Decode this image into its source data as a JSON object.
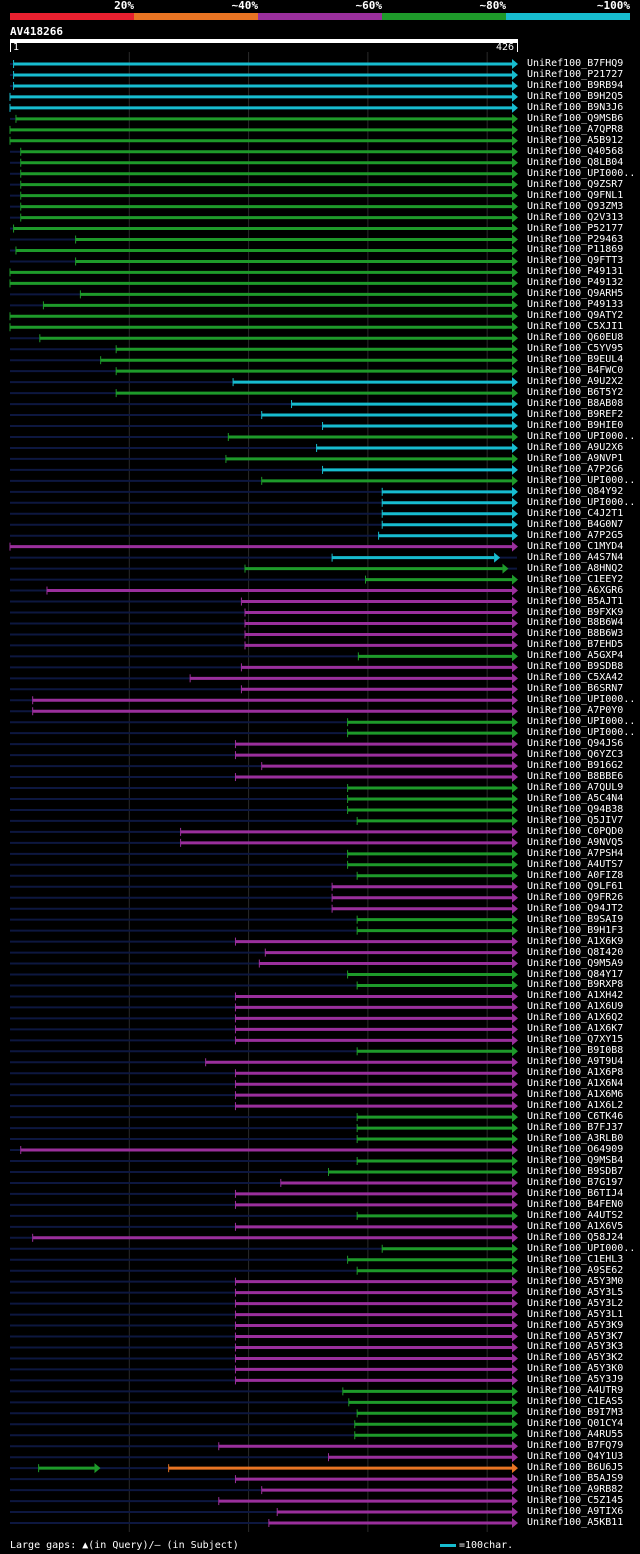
{
  "query": {
    "id": "AV418266",
    "length": 426,
    "start_label": "1",
    "end_label": "426"
  },
  "legend": [
    {
      "label": "20%",
      "color": "#e8202f"
    },
    {
      "label": "~40%",
      "color": "#e87423"
    },
    {
      "label": "~60%",
      "color": "#9a2f9c"
    },
    {
      "label": "~80%",
      "color": "#1e9a2a"
    },
    {
      "label": "~100%",
      "color": "#17bccf"
    }
  ],
  "colors": {
    "teal": "#17bccf",
    "green": "#1e9a2a",
    "purple": "#9a2f9c",
    "orange": "#e87423",
    "red": "#e8202f",
    "track": "#0d1740"
  },
  "footer": {
    "gaps_text": "Large gaps: ▲(in Query)/— (in Subject)",
    "scale_text": "=100char."
  },
  "chart_data": {
    "type": "alignment-overview",
    "x_units": "query residue",
    "xlim": [
      1,
      426
    ],
    "hits": [
      {
        "id": "UniRef100_B7FHQ9",
        "color": "teal",
        "start": 4,
        "end": 426
      },
      {
        "id": "UniRef100_P21727",
        "color": "teal",
        "start": 4,
        "end": 426
      },
      {
        "id": "UniRef100_B9RB94",
        "color": "teal",
        "start": 4,
        "end": 426
      },
      {
        "id": "UniRef100_B9H2Q5",
        "color": "teal",
        "start": 1,
        "end": 426
      },
      {
        "id": "UniRef100_B9N3J6",
        "color": "teal",
        "start": 1,
        "end": 426
      },
      {
        "id": "UniRef100_Q9MSB6",
        "color": "green",
        "start": 6,
        "end": 426
      },
      {
        "id": "UniRef100_A7QPR8",
        "color": "green",
        "start": 1,
        "end": 426
      },
      {
        "id": "UniRef100_A5B912",
        "color": "green",
        "start": 1,
        "end": 426
      },
      {
        "id": "UniRef100_Q40568",
        "color": "green",
        "start": 10,
        "end": 426
      },
      {
        "id": "UniRef100_Q8LB04",
        "color": "green",
        "start": 10,
        "end": 426
      },
      {
        "id": "UniRef100_UPI000..",
        "color": "green",
        "start": 10,
        "end": 426
      },
      {
        "id": "UniRef100_Q9ZSR7",
        "color": "green",
        "start": 10,
        "end": 426
      },
      {
        "id": "UniRef100_Q9FNL1",
        "color": "green",
        "start": 10,
        "end": 426
      },
      {
        "id": "UniRef100_Q93ZM3",
        "color": "green",
        "start": 10,
        "end": 426
      },
      {
        "id": "UniRef100_Q2V313",
        "color": "green",
        "start": 10,
        "end": 426
      },
      {
        "id": "UniRef100_P52177",
        "color": "green",
        "start": 4,
        "end": 426
      },
      {
        "id": "UniRef100_P29463",
        "color": "green",
        "start": 56,
        "end": 426
      },
      {
        "id": "UniRef100_P11869",
        "color": "green",
        "start": 6,
        "end": 426
      },
      {
        "id": "UniRef100_Q9FTT3",
        "color": "green",
        "start": 56,
        "end": 426
      },
      {
        "id": "UniRef100_P49131",
        "color": "green",
        "start": 1,
        "end": 426
      },
      {
        "id": "UniRef100_P49132",
        "color": "green",
        "start": 1,
        "end": 426
      },
      {
        "id": "UniRef100_Q9ARH5",
        "color": "green",
        "start": 60,
        "end": 426
      },
      {
        "id": "UniRef100_P49133",
        "color": "green",
        "start": 29,
        "end": 426
      },
      {
        "id": "UniRef100_Q9ATY2",
        "color": "green",
        "start": 1,
        "end": 426
      },
      {
        "id": "UniRef100_C5XJI1",
        "color": "green",
        "start": 1,
        "end": 426
      },
      {
        "id": "UniRef100_Q60EU8",
        "color": "green",
        "start": 26,
        "end": 426
      },
      {
        "id": "UniRef100_C5YV95",
        "color": "green",
        "start": 90,
        "end": 426
      },
      {
        "id": "UniRef100_B9EUL4",
        "color": "green",
        "start": 77,
        "end": 426
      },
      {
        "id": "UniRef100_B4FWC0",
        "color": "green",
        "start": 90,
        "end": 426
      },
      {
        "id": "UniRef100_A9U2X2",
        "color": "teal",
        "start": 188,
        "end": 426
      },
      {
        "id": "UniRef100_B6T5Y2",
        "color": "green",
        "start": 90,
        "end": 426
      },
      {
        "id": "UniRef100_B8AB08",
        "color": "teal",
        "start": 237,
        "end": 426
      },
      {
        "id": "UniRef100_B9REF2",
        "color": "teal",
        "start": 212,
        "end": 426
      },
      {
        "id": "UniRef100_B9HIE0",
        "color": "teal",
        "start": 263,
        "end": 426
      },
      {
        "id": "UniRef100_UPI000..",
        "color": "green",
        "start": 184,
        "end": 426
      },
      {
        "id": "UniRef100_A9U2X6",
        "color": "teal",
        "start": 258,
        "end": 426
      },
      {
        "id": "UniRef100_A9NVP1",
        "color": "green",
        "start": 182,
        "end": 426
      },
      {
        "id": "UniRef100_A7P2G6",
        "color": "teal",
        "start": 263,
        "end": 426
      },
      {
        "id": "UniRef100_UPI000..",
        "color": "green",
        "start": 212,
        "end": 426
      },
      {
        "id": "UniRef100_Q84Y92",
        "color": "teal",
        "start": 313,
        "end": 426
      },
      {
        "id": "UniRef100_UPI000..",
        "color": "teal",
        "start": 313,
        "end": 426
      },
      {
        "id": "UniRef100_C4J2T1",
        "color": "teal",
        "start": 313,
        "end": 426
      },
      {
        "id": "UniRef100_B4G0N7",
        "color": "teal",
        "start": 313,
        "end": 426
      },
      {
        "id": "UniRef100_A7P2G5",
        "color": "teal",
        "start": 310,
        "end": 426
      },
      {
        "id": "UniRef100_C1MYD4",
        "color": "purple",
        "start": 1,
        "end": 426
      },
      {
        "id": "UniRef100_A4S7N4",
        "color": "teal",
        "start": 271,
        "end": 411
      },
      {
        "id": "UniRef100_A8HNQ2",
        "color": "green",
        "start": 198,
        "end": 418
      },
      {
        "id": "UniRef100_C1EEY2",
        "color": "green",
        "start": 299,
        "end": 426
      },
      {
        "id": "UniRef100_A6XGR6",
        "color": "purple",
        "start": 32,
        "end": 426
      },
      {
        "id": "UniRef100_B5AJT1",
        "color": "purple",
        "start": 195,
        "end": 426
      },
      {
        "id": "UniRef100_B9FXK9",
        "color": "purple",
        "start": 198,
        "end": 426
      },
      {
        "id": "UniRef100_B8B6W4",
        "color": "purple",
        "start": 198,
        "end": 426
      },
      {
        "id": "UniRef100_B8B6W3",
        "color": "purple",
        "start": 198,
        "end": 426
      },
      {
        "id": "UniRef100_B7EHD5",
        "color": "purple",
        "start": 198,
        "end": 426
      },
      {
        "id": "UniRef100_A5GXP4",
        "color": "green",
        "start": 293,
        "end": 426
      },
      {
        "id": "UniRef100_B9SDB8",
        "color": "purple",
        "start": 195,
        "end": 426
      },
      {
        "id": "UniRef100_C5XA42",
        "color": "purple",
        "start": 152,
        "end": 426
      },
      {
        "id": "UniRef100_B6SRN7",
        "color": "purple",
        "start": 195,
        "end": 426
      },
      {
        "id": "UniRef100_UPI000..",
        "color": "purple",
        "start": 20,
        "end": 426
      },
      {
        "id": "UniRef100_A7P0Y0",
        "color": "purple",
        "start": 20,
        "end": 426
      },
      {
        "id": "UniRef100_UPI000..",
        "color": "green",
        "start": 284,
        "end": 426
      },
      {
        "id": "UniRef100_UPI000..",
        "color": "green",
        "start": 284,
        "end": 426
      },
      {
        "id": "UniRef100_Q94JS6",
        "color": "purple",
        "start": 190,
        "end": 426
      },
      {
        "id": "UniRef100_Q6YZC3",
        "color": "purple",
        "start": 190,
        "end": 426
      },
      {
        "id": "UniRef100_B916G2",
        "color": "purple",
        "start": 212,
        "end": 426
      },
      {
        "id": "UniRef100_B8BBE6",
        "color": "purple",
        "start": 190,
        "end": 426
      },
      {
        "id": "UniRef100_A7QUL9",
        "color": "green",
        "start": 284,
        "end": 426
      },
      {
        "id": "UniRef100_A5C4N4",
        "color": "green",
        "start": 284,
        "end": 426
      },
      {
        "id": "UniRef100_Q94B38",
        "color": "green",
        "start": 284,
        "end": 426
      },
      {
        "id": "UniRef100_Q5JIV7",
        "color": "green",
        "start": 292,
        "end": 426
      },
      {
        "id": "UniRef100_C0PQD0",
        "color": "purple",
        "start": 144,
        "end": 426
      },
      {
        "id": "UniRef100_A9NVQ5",
        "color": "purple",
        "start": 144,
        "end": 426
      },
      {
        "id": "UniRef100_A7PSH4",
        "color": "green",
        "start": 284,
        "end": 426
      },
      {
        "id": "UniRef100_A4UTS7",
        "color": "green",
        "start": 284,
        "end": 426
      },
      {
        "id": "UniRef100_A0FIZ8",
        "color": "green",
        "start": 292,
        "end": 426
      },
      {
        "id": "UniRef100_Q9LF61",
        "color": "purple",
        "start": 271,
        "end": 426
      },
      {
        "id": "UniRef100_Q9FR26",
        "color": "purple",
        "start": 271,
        "end": 426
      },
      {
        "id": "UniRef100_Q94JT2",
        "color": "purple",
        "start": 271,
        "end": 426
      },
      {
        "id": "UniRef100_B9SAI9",
        "color": "green",
        "start": 292,
        "end": 426
      },
      {
        "id": "UniRef100_B9H1F3",
        "color": "green",
        "start": 292,
        "end": 426
      },
      {
        "id": "UniRef100_A1X6K9",
        "color": "purple",
        "start": 190,
        "end": 426
      },
      {
        "id": "UniRef100_Q8I420",
        "color": "purple",
        "start": 215,
        "end": 426
      },
      {
        "id": "UniRef100_Q9M5A9",
        "color": "purple",
        "start": 210,
        "end": 426
      },
      {
        "id": "UniRef100_Q84Y17",
        "color": "green",
        "start": 284,
        "end": 426
      },
      {
        "id": "UniRef100_B9RXP8",
        "color": "green",
        "start": 292,
        "end": 426
      },
      {
        "id": "UniRef100_A1XH42",
        "color": "purple",
        "start": 190,
        "end": 426
      },
      {
        "id": "UniRef100_A1X6U9",
        "color": "purple",
        "start": 190,
        "end": 426
      },
      {
        "id": "UniRef100_A1X6Q2",
        "color": "purple",
        "start": 190,
        "end": 426
      },
      {
        "id": "UniRef100_A1X6K7",
        "color": "purple",
        "start": 190,
        "end": 426
      },
      {
        "id": "UniRef100_Q7XY15",
        "color": "purple",
        "start": 190,
        "end": 426
      },
      {
        "id": "UniRef100_B9I0B8",
        "color": "green",
        "start": 292,
        "end": 426
      },
      {
        "id": "UniRef100_A9T9U4",
        "color": "purple",
        "start": 165,
        "end": 426
      },
      {
        "id": "UniRef100_A1X6P8",
        "color": "purple",
        "start": 190,
        "end": 426
      },
      {
        "id": "UniRef100_A1X6N4",
        "color": "purple",
        "start": 190,
        "end": 426
      },
      {
        "id": "UniRef100_A1X6M6",
        "color": "purple",
        "start": 190,
        "end": 426
      },
      {
        "id": "UniRef100_A1X6L2",
        "color": "purple",
        "start": 190,
        "end": 426
      },
      {
        "id": "UniRef100_C6TK46",
        "color": "green",
        "start": 292,
        "end": 426
      },
      {
        "id": "UniRef100_B7FJ37",
        "color": "green",
        "start": 292,
        "end": 426
      },
      {
        "id": "UniRef100_A3RLB0",
        "color": "green",
        "start": 292,
        "end": 426
      },
      {
        "id": "UniRef100_O64909",
        "color": "purple",
        "start": 10,
        "end": 426
      },
      {
        "id": "UniRef100_Q9MSB4",
        "color": "green",
        "start": 292,
        "end": 426
      },
      {
        "id": "UniRef100_B9SDB7",
        "color": "green",
        "start": 268,
        "end": 426
      },
      {
        "id": "UniRef100_B7G197",
        "color": "purple",
        "start": 228,
        "end": 426
      },
      {
        "id": "UniRef100_B6TIJ4",
        "color": "purple",
        "start": 190,
        "end": 426
      },
      {
        "id": "UniRef100_B4FEN0",
        "color": "purple",
        "start": 190,
        "end": 426
      },
      {
        "id": "UniRef100_A4UTS2",
        "color": "green",
        "start": 292,
        "end": 426
      },
      {
        "id": "UniRef100_A1X6V5",
        "color": "purple",
        "start": 190,
        "end": 426
      },
      {
        "id": "UniRef100_Q58J24",
        "color": "purple",
        "start": 20,
        "end": 426
      },
      {
        "id": "UniRef100_UPI000..",
        "color": "green",
        "start": 313,
        "end": 426
      },
      {
        "id": "UniRef100_C1EHL3",
        "color": "green",
        "start": 284,
        "end": 426
      },
      {
        "id": "UniRef100_A9SE62",
        "color": "green",
        "start": 292,
        "end": 426
      },
      {
        "id": "UniRef100_A5Y3M0",
        "color": "purple",
        "start": 190,
        "end": 426
      },
      {
        "id": "UniRef100_A5Y3L5",
        "color": "purple",
        "start": 190,
        "end": 426
      },
      {
        "id": "UniRef100_A5Y3L2",
        "color": "purple",
        "start": 190,
        "end": 426
      },
      {
        "id": "UniRef100_A5Y3L1",
        "color": "purple",
        "start": 190,
        "end": 426
      },
      {
        "id": "UniRef100_A5Y3K9",
        "color": "purple",
        "start": 190,
        "end": 426
      },
      {
        "id": "UniRef100_A5Y3K7",
        "color": "purple",
        "start": 190,
        "end": 426
      },
      {
        "id": "UniRef100_A5Y3K3",
        "color": "purple",
        "start": 190,
        "end": 426
      },
      {
        "id": "UniRef100_A5Y3K2",
        "color": "purple",
        "start": 190,
        "end": 426
      },
      {
        "id": "UniRef100_A5Y3K0",
        "color": "purple",
        "start": 190,
        "end": 426
      },
      {
        "id": "UniRef100_A5Y3J9",
        "color": "purple",
        "start": 190,
        "end": 426
      },
      {
        "id": "UniRef100_A4UTR9",
        "color": "green",
        "start": 280,
        "end": 426
      },
      {
        "id": "UniRef100_C1EAS5",
        "color": "green",
        "start": 285,
        "end": 426
      },
      {
        "id": "UniRef100_B9I7M3",
        "color": "green",
        "start": 292,
        "end": 426
      },
      {
        "id": "UniRef100_Q01CY4",
        "color": "green",
        "start": 290,
        "end": 426
      },
      {
        "id": "UniRef100_A4RU55",
        "color": "green",
        "start": 290,
        "end": 426
      },
      {
        "id": "UniRef100_B7FQ79",
        "color": "purple",
        "start": 176,
        "end": 426
      },
      {
        "id": "UniRef100_Q4Y1U3",
        "color": "purple",
        "start": 268,
        "end": 426
      },
      {
        "id": "UniRef100_B6U6J5",
        "color": "orange",
        "start": 134,
        "end": 426,
        "extra_segment": {
          "color": "green",
          "start": 25,
          "end": 76
        }
      },
      {
        "id": "UniRef100_B5AJS9",
        "color": "purple",
        "start": 190,
        "end": 426
      },
      {
        "id": "UniRef100_A9RB82",
        "color": "purple",
        "start": 212,
        "end": 426
      },
      {
        "id": "UniRef100_C5Z145",
        "color": "purple",
        "start": 176,
        "end": 426
      },
      {
        "id": "UniRef100_A9TIX6",
        "color": "purple",
        "start": 225,
        "end": 426
      },
      {
        "id": "UniRef100_A5KB11",
        "color": "purple",
        "start": 218,
        "end": 426
      }
    ]
  }
}
